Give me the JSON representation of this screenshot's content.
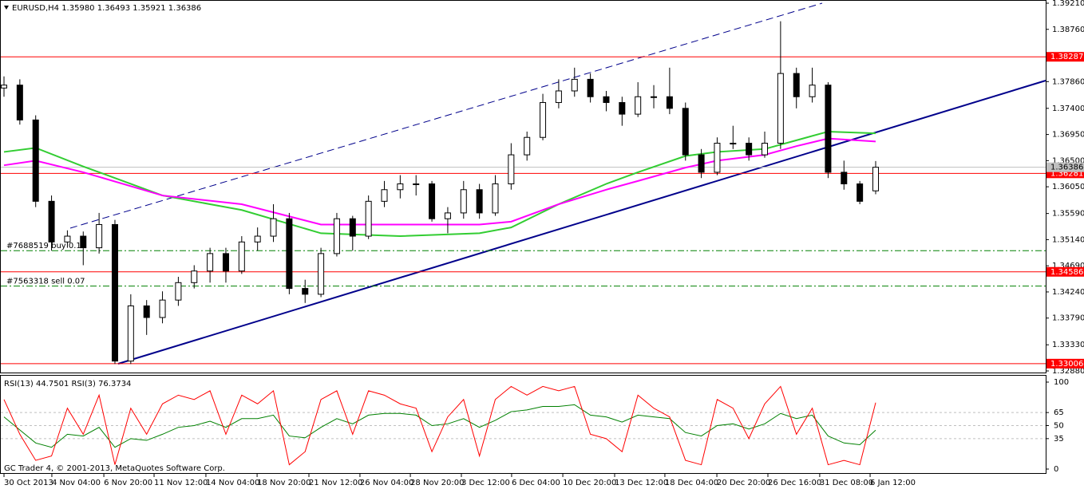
{
  "chart_data": [
    {
      "type": "candlestick",
      "title": "EURUSD,H4  1.35980 1.36493 1.35921 1.36386",
      "xlim": [
        0,
        55
      ],
      "ylim": [
        1.3288,
        1.3921
      ],
      "yticks": [
        {
          "value": 1.3921,
          "label": "1.39210"
        },
        {
          "value": 1.3876,
          "label": "1.38760"
        },
        {
          "value": 1.3786,
          "label": "1.37860"
        },
        {
          "value": 1.374,
          "label": "1.37400"
        },
        {
          "value": 1.3695,
          "label": "1.36950"
        },
        {
          "value": 1.365,
          "label": "1.36500"
        },
        {
          "value": 1.3605,
          "label": "1.36050"
        },
        {
          "value": 1.3559,
          "label": "1.35590"
        },
        {
          "value": 1.3514,
          "label": "1.35140"
        },
        {
          "value": 1.3469,
          "label": "1.34690"
        },
        {
          "value": 1.3424,
          "label": "1.34240"
        },
        {
          "value": 1.3379,
          "label": "1.33790"
        },
        {
          "value": 1.3333,
          "label": "1.33330"
        },
        {
          "value": 1.3288,
          "label": "1.32880"
        }
      ],
      "open": [
        1.3775,
        1.378,
        1.372,
        1.358,
        1.351,
        1.352,
        1.35,
        1.354,
        1.3305,
        1.34,
        1.338,
        1.341,
        1.344,
        1.346,
        1.349,
        1.346,
        1.351,
        1.352,
        1.355,
        1.343,
        1.342,
        1.349,
        1.355,
        1.352,
        1.358,
        1.36,
        1.361,
        1.361,
        1.355,
        1.356,
        1.36,
        1.356,
        1.361,
        1.366,
        1.369,
        1.375,
        1.377,
        1.379,
        1.376,
        1.375,
        1.373,
        1.376,
        1.376,
        1.374,
        1.366,
        1.363,
        1.368,
        1.368,
        1.366,
        1.368,
        1.38,
        1.376,
        1.378,
        1.363,
        1.361,
        1.3598
      ],
      "high": [
        1.3795,
        1.379,
        1.3728,
        1.359,
        1.353,
        1.3528,
        1.356,
        1.3548,
        1.342,
        1.341,
        1.3425,
        1.345,
        1.347,
        1.35,
        1.35,
        1.352,
        1.3535,
        1.3575,
        1.356,
        1.3445,
        1.35,
        1.356,
        1.3555,
        1.359,
        1.3615,
        1.3625,
        1.3625,
        1.3615,
        1.357,
        1.3615,
        1.361,
        1.3625,
        1.368,
        1.37,
        1.3765,
        1.379,
        1.381,
        1.38,
        1.377,
        1.376,
        1.3785,
        1.378,
        1.381,
        1.375,
        1.367,
        1.369,
        1.371,
        1.369,
        1.37,
        1.389,
        1.381,
        1.381,
        1.3785,
        1.365,
        1.3615,
        1.36493
      ],
      "low": [
        1.376,
        1.3712,
        1.357,
        1.3495,
        1.35,
        1.347,
        1.349,
        1.33,
        1.33,
        1.335,
        1.337,
        1.34,
        1.343,
        1.344,
        1.344,
        1.3455,
        1.3495,
        1.351,
        1.342,
        1.3405,
        1.3415,
        1.3485,
        1.3495,
        1.3515,
        1.357,
        1.3585,
        1.359,
        1.3545,
        1.3525,
        1.355,
        1.355,
        1.3555,
        1.36,
        1.365,
        1.3685,
        1.374,
        1.376,
        1.375,
        1.3735,
        1.371,
        1.3725,
        1.374,
        1.373,
        1.365,
        1.362,
        1.3625,
        1.367,
        1.365,
        1.3655,
        1.367,
        1.374,
        1.375,
        1.362,
        1.36,
        1.3575,
        1.35921
      ],
      "close": [
        1.378,
        1.372,
        1.358,
        1.351,
        1.352,
        1.35,
        1.354,
        1.3305,
        1.34,
        1.338,
        1.341,
        1.344,
        1.346,
        1.349,
        1.346,
        1.351,
        1.352,
        1.355,
        1.343,
        1.342,
        1.349,
        1.355,
        1.352,
        1.358,
        1.36,
        1.361,
        1.361,
        1.355,
        1.356,
        1.36,
        1.356,
        1.361,
        1.366,
        1.369,
        1.375,
        1.377,
        1.379,
        1.376,
        1.375,
        1.373,
        1.376,
        1.376,
        1.374,
        1.366,
        1.363,
        1.368,
        1.368,
        1.366,
        1.368,
        1.38,
        1.376,
        1.378,
        1.363,
        1.361,
        1.358,
        1.36386
      ],
      "series": [
        {
          "color": "#32cd32",
          "x": [
            0,
            2,
            5,
            10,
            15,
            20,
            25,
            30,
            32,
            35,
            38,
            40,
            43,
            45,
            48,
            50,
            52,
            55
          ],
          "values": [
            1.3665,
            1.3672,
            1.364,
            1.359,
            1.3565,
            1.3525,
            1.352,
            1.3525,
            1.3535,
            1.3575,
            1.361,
            1.363,
            1.3658,
            1.3665,
            1.367,
            1.3685,
            1.37,
            1.3697
          ]
        },
        {
          "color": "#ff00ff",
          "x": [
            0,
            2,
            5,
            10,
            15,
            20,
            25,
            30,
            32,
            35,
            38,
            40,
            43,
            45,
            48,
            50,
            52,
            55
          ],
          "values": [
            1.3642,
            1.365,
            1.363,
            1.359,
            1.3575,
            1.354,
            1.354,
            1.354,
            1.3545,
            1.3575,
            1.36,
            1.3615,
            1.3638,
            1.365,
            1.366,
            1.3675,
            1.3688,
            1.3683
          ]
        }
      ],
      "hlines": {
        "color": "#ff0000",
        "values": [
          1.38287,
          1.36281,
          1.34586,
          1.33006
        ]
      },
      "current_price": 1.36386,
      "orders": {
        "color": "#008000",
        "values": [
          1.3495,
          1.3434
        ],
        "labels": [
          "#7688519 buy 0.15",
          "#7563318 sell 0.07"
        ]
      }
    },
    {
      "type": "line",
      "title": "RSI(13) 44.7501 RSI(3) 76.3734",
      "xlim": [
        0,
        55
      ],
      "ylim": [
        0,
        100
      ],
      "yticks": [
        100,
        65,
        50,
        35,
        0
      ],
      "xticks": [
        {
          "value": 0,
          "label": "30 Oct 2013"
        },
        {
          "value": 3.02,
          "label": "4 Nov 04:00"
        },
        {
          "value": 6.3,
          "label": "6 Nov 20:00"
        },
        {
          "value": 9.47,
          "label": "11 Nov 12:00"
        },
        {
          "value": 12.74,
          "label": "14 Nov 04:00"
        },
        {
          "value": 15.97,
          "label": "18 Nov 20:00"
        },
        {
          "value": 19.24,
          "label": "21 Nov 12:00"
        },
        {
          "value": 22.46,
          "label": "26 Nov 04:00"
        },
        {
          "value": 25.64,
          "label": "28 Nov 20:00"
        },
        {
          "value": 28.86,
          "label": "3 Dec 12:00"
        },
        {
          "value": 32.03,
          "label": "6 Dec 04:00"
        },
        {
          "value": 35.26,
          "label": "10 Dec 20:00"
        },
        {
          "value": 38.53,
          "label": "13 Dec 12:00"
        },
        {
          "value": 41.7,
          "label": "18 Dec 04:00"
        },
        {
          "value": 44.98,
          "label": "20 Dec 20:00"
        },
        {
          "value": 48.2,
          "label": "26 Dec 16:00"
        },
        {
          "value": 51.47,
          "label": "31 Dec 08:00"
        },
        {
          "value": 54.65,
          "label": "6 Jan 12:00"
        }
      ],
      "series": [
        {
          "color": "#008000",
          "values": [
            60,
            45,
            30,
            25,
            40,
            38,
            48,
            25,
            35,
            33,
            40,
            48,
            50,
            55,
            48,
            58,
            58,
            62,
            38,
            36,
            48,
            58,
            52,
            62,
            64,
            64,
            62,
            50,
            52,
            58,
            48,
            56,
            66,
            68,
            72,
            72,
            74,
            62,
            60,
            54,
            62,
            60,
            58,
            42,
            38,
            50,
            52,
            46,
            52,
            64,
            58,
            62,
            38,
            30,
            28,
            44.7501
          ]
        },
        {
          "color": "#ff0000",
          "values": [
            80,
            40,
            10,
            15,
            70,
            40,
            85,
            5,
            70,
            40,
            75,
            85,
            80,
            90,
            40,
            85,
            75,
            90,
            5,
            20,
            80,
            90,
            40,
            90,
            85,
            75,
            70,
            20,
            60,
            80,
            15,
            80,
            95,
            85,
            95,
            90,
            95,
            40,
            35,
            20,
            85,
            70,
            60,
            10,
            5,
            80,
            70,
            35,
            75,
            95,
            40,
            70,
            5,
            10,
            5,
            76.3734
          ]
        }
      ]
    }
  ],
  "footer": "GC Trader 4, © 2001-2013, MetaQuotes Software Corp."
}
